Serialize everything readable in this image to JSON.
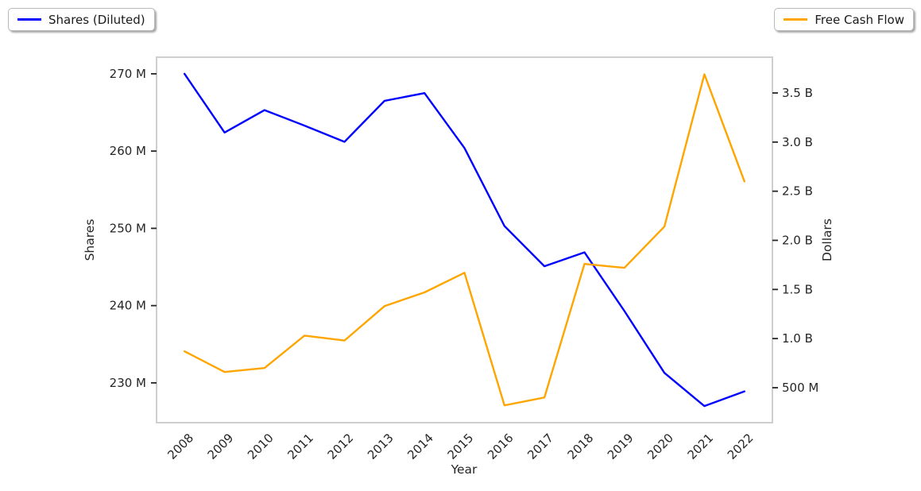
{
  "legend": {
    "left": {
      "label": "Shares (Diluted)"
    },
    "right": {
      "label": "Free Cash Flow"
    }
  },
  "chart_data": {
    "type": "line",
    "title": "",
    "xlabel": "Year",
    "ylabel_left": "Shares",
    "ylabel_right": "Dollars",
    "grid": false,
    "legend_position": "top-left and top-right, outside axes, boxed with shadow",
    "categories": [
      "2008",
      "2009",
      "2010",
      "2011",
      "2012",
      "2013",
      "2014",
      "2015",
      "2016",
      "2017",
      "2018",
      "2019",
      "2020",
      "2021",
      "2022"
    ],
    "series": [
      {
        "name": "Shares (Diluted)",
        "axis": "left",
        "color": "#0000ff",
        "unit": "M (millions of shares)",
        "values": [
          270.0,
          262.4,
          265.3,
          263.3,
          261.2,
          266.5,
          267.5,
          260.4,
          250.3,
          245.1,
          246.9,
          239.3,
          231.3,
          227.0,
          228.9
        ]
      },
      {
        "name": "Free Cash Flow",
        "axis": "right",
        "color": "#ffa500",
        "unit": "B (billions of dollars)",
        "values": [
          0.87,
          0.66,
          0.7,
          1.03,
          0.98,
          1.33,
          1.47,
          1.67,
          0.32,
          0.4,
          1.76,
          1.72,
          2.14,
          3.69,
          2.6
        ]
      }
    ],
    "left_axis": {
      "label": "Shares",
      "tick_labels": [
        "230 M",
        "240 M",
        "250 M",
        "260 M",
        "270 M"
      ],
      "tick_values": [
        230,
        240,
        250,
        260,
        270
      ],
      "range": [
        224.85,
        272.15
      ]
    },
    "right_axis": {
      "label": "Dollars",
      "tick_labels": [
        "500 M",
        "1.0 B",
        "1.5 B",
        "2.0 B",
        "2.5 B",
        "3.0 B",
        "3.5 B"
      ],
      "tick_values": [
        0.5,
        1.0,
        1.5,
        2.0,
        2.5,
        3.0,
        3.5
      ],
      "range": [
        0.144,
        3.864
      ]
    },
    "colors": {
      "spine": "#cfcfcf",
      "tick_mark": "#262626",
      "tick_text": "#262626",
      "axis_label_text": "#262626",
      "background": "#ffffff"
    }
  }
}
